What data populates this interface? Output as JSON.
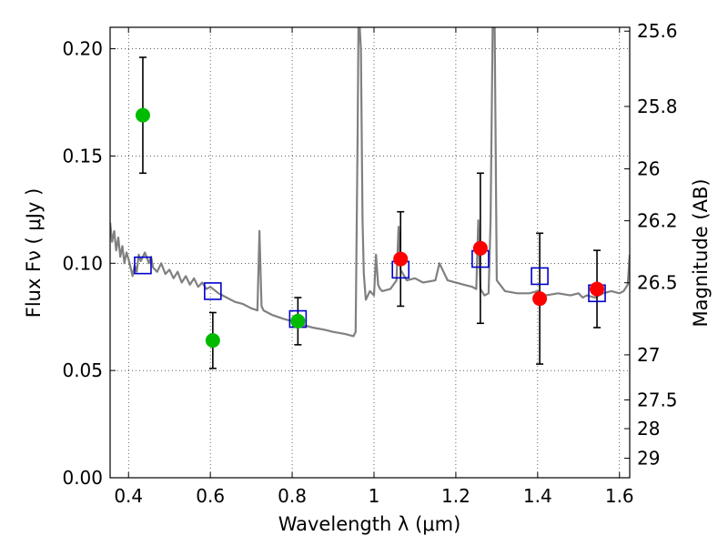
{
  "chart_data": {
    "type": "scatter",
    "xlabel": "Wavelength  λ (μm)",
    "ylabel": "Flux  Fν  ( μJy )",
    "ylabel_right": "Magnitude (AB)",
    "xlim": [
      0.355,
      1.625
    ],
    "ylim": [
      0,
      0.21
    ],
    "grid": true,
    "x_ticks": [
      {
        "value": 0.4,
        "label": "0.4"
      },
      {
        "value": 0.6,
        "label": "0.6"
      },
      {
        "value": 0.8,
        "label": "0.8"
      },
      {
        "value": 1.0,
        "label": "1"
      },
      {
        "value": 1.2,
        "label": "1.2"
      },
      {
        "value": 1.4,
        "label": "1.4"
      },
      {
        "value": 1.6,
        "label": "1.6"
      }
    ],
    "y_ticks": [
      {
        "value": 0.0,
        "label": "0.00"
      },
      {
        "value": 0.05,
        "label": "0.05"
      },
      {
        "value": 0.1,
        "label": "0.10"
      },
      {
        "value": 0.15,
        "label": "0.15"
      },
      {
        "value": 0.2,
        "label": "0.20"
      }
    ],
    "right_ticks": [
      {
        "label": "25.6",
        "flux": 0.2082
      },
      {
        "label": "25.8",
        "flux": 0.1731
      },
      {
        "label": "26",
        "flux": 0.144
      },
      {
        "label": "26.2",
        "flux": 0.1198
      },
      {
        "label": "26.5",
        "flux": 0.0909
      },
      {
        "label": "27",
        "flux": 0.0573
      },
      {
        "label": "27.5",
        "flux": 0.0363
      },
      {
        "label": "28",
        "flux": 0.0229
      },
      {
        "label": "29",
        "flux": 0.0091
      }
    ],
    "colors": {
      "spectrum": "#808080",
      "green": "#00bb00",
      "red": "#ff0000",
      "model_box": "#0000cc",
      "errorbar": "#000000"
    },
    "series": [
      {
        "kind": "line",
        "x": [
          0.355,
          0.36,
          0.365,
          0.37,
          0.375,
          0.38,
          0.385,
          0.39,
          0.395,
          0.4,
          0.405,
          0.41,
          0.415,
          0.42,
          0.425,
          0.43,
          0.44,
          0.45,
          0.455,
          0.46,
          0.47,
          0.48,
          0.49,
          0.5,
          0.51,
          0.52,
          0.53,
          0.54,
          0.55,
          0.56,
          0.57,
          0.58,
          0.59,
          0.6,
          0.62,
          0.64,
          0.66,
          0.68,
          0.7,
          0.715,
          0.72,
          0.725,
          0.73,
          0.75,
          0.78,
          0.8,
          0.83,
          0.85,
          0.88,
          0.9,
          0.93,
          0.95,
          0.955,
          0.96,
          0.962,
          0.965,
          0.968,
          0.972,
          0.975,
          0.98,
          0.99,
          1.0,
          1.005,
          1.01,
          1.015,
          1.02,
          1.04,
          1.055,
          1.06,
          1.065,
          1.08,
          1.1,
          1.12,
          1.15,
          1.16,
          1.18,
          1.2,
          1.22,
          1.24,
          1.25,
          1.255,
          1.26,
          1.27,
          1.28,
          1.285,
          1.29,
          1.295,
          1.3,
          1.32,
          1.35,
          1.38,
          1.4,
          1.42,
          1.45,
          1.48,
          1.5,
          1.51,
          1.52,
          1.54,
          1.56,
          1.58,
          1.6,
          1.61,
          1.62,
          1.625
        ],
        "y": [
          0.119,
          0.11,
          0.115,
          0.106,
          0.112,
          0.103,
          0.108,
          0.1,
          0.105,
          0.102,
          0.098,
          0.094,
          0.099,
          0.096,
          0.104,
          0.101,
          0.105,
          0.1,
          0.103,
          0.098,
          0.096,
          0.1,
          0.095,
          0.097,
          0.093,
          0.096,
          0.091,
          0.094,
          0.09,
          0.093,
          0.089,
          0.091,
          0.088,
          0.089,
          0.086,
          0.084,
          0.082,
          0.081,
          0.079,
          0.078,
          0.115,
          0.08,
          0.078,
          0.076,
          0.074,
          0.073,
          0.071,
          0.07,
          0.069,
          0.068,
          0.067,
          0.066,
          0.068,
          0.16,
          0.21,
          0.21,
          0.2,
          0.12,
          0.095,
          0.083,
          0.087,
          0.085,
          0.104,
          0.09,
          0.088,
          0.087,
          0.088,
          0.092,
          0.117,
          0.097,
          0.092,
          0.093,
          0.091,
          0.092,
          0.1,
          0.092,
          0.091,
          0.09,
          0.089,
          0.088,
          0.12,
          0.088,
          0.085,
          0.086,
          0.12,
          0.21,
          0.21,
          0.092,
          0.087,
          0.086,
          0.086,
          0.087,
          0.085,
          0.086,
          0.085,
          0.086,
          0.084,
          0.085,
          0.084,
          0.086,
          0.087,
          0.086,
          0.087,
          0.09,
          0.104
        ]
      },
      {
        "kind": "points",
        "marker": "circle",
        "color": "green",
        "points": [
          {
            "x": 0.435,
            "y": 0.169,
            "err_low": 0.142,
            "err_high": 0.196
          },
          {
            "x": 0.606,
            "y": 0.064,
            "err_low": 0.051,
            "err_high": 0.077
          },
          {
            "x": 0.814,
            "y": 0.073,
            "err_low": 0.062,
            "err_high": 0.084
          }
        ]
      },
      {
        "kind": "points",
        "marker": "circle",
        "color": "red",
        "points": [
          {
            "x": 1.065,
            "y": 0.102,
            "err_low": 0.08,
            "err_high": 0.124
          },
          {
            "x": 1.26,
            "y": 0.107,
            "err_low": 0.072,
            "err_high": 0.142
          },
          {
            "x": 1.405,
            "y": 0.0835,
            "err_low": 0.053,
            "err_high": 0.114
          },
          {
            "x": 1.545,
            "y": 0.088,
            "err_low": 0.07,
            "err_high": 0.106
          }
        ]
      },
      {
        "kind": "points",
        "marker": "square",
        "color": "model_box",
        "points": [
          {
            "x": 0.435,
            "y": 0.099
          },
          {
            "x": 0.606,
            "y": 0.087
          },
          {
            "x": 0.814,
            "y": 0.074
          },
          {
            "x": 1.065,
            "y": 0.097
          },
          {
            "x": 1.26,
            "y": 0.102
          },
          {
            "x": 1.405,
            "y": 0.094
          },
          {
            "x": 1.545,
            "y": 0.086
          }
        ]
      }
    ]
  }
}
